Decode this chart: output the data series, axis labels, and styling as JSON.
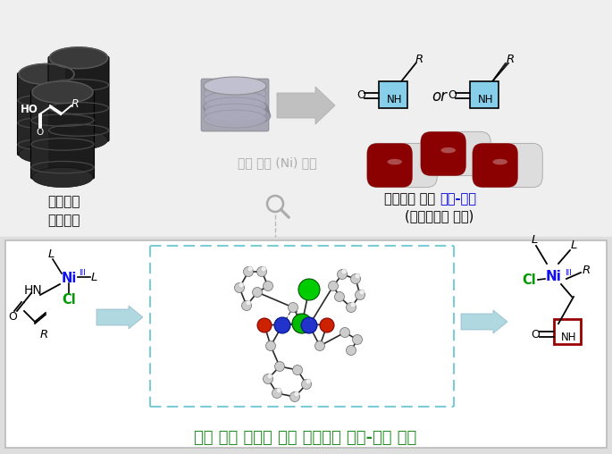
{
  "bg_color": "#f0f0f0",
  "top_bg": "#efefef",
  "bottom_panel_bg": "#ffffff",
  "bottom_outer_bg": "#e0e0e0",
  "dashed_box_color": "#7bccd4",
  "text_Ni_blue": "#1010ee",
  "text_Cl_green": "#009900",
  "text_green_caption": "#228B22",
  "text_gray_catalyst": "#999999",
  "label_hydrocarbon": "탄화수소\n원료물질",
  "label_catalyst": "값싼 니켈 (Ni) 촉매",
  "label_product1": "의약품의 원료 ",
  "label_product2": "베타-락탐",
  "label_product3": "\n(고부가가치 물질)",
  "label_bottom": "반응 경로 조절을 통한 선택적인 베타-락탐 형성",
  "figsize": [
    6.85,
    5.08
  ],
  "dpi": 100
}
